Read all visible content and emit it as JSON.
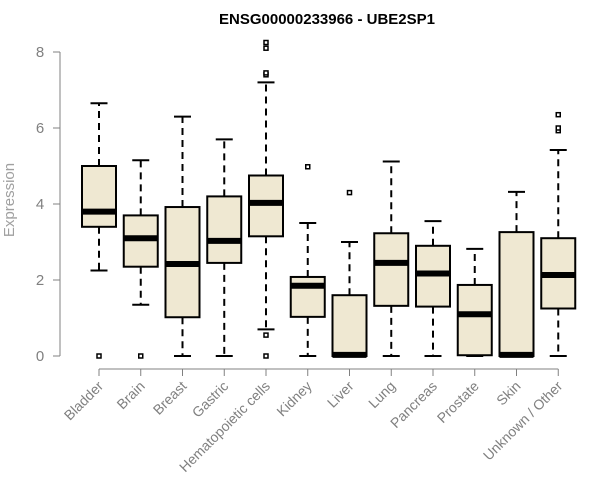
{
  "chart_data": {
    "type": "box",
    "title": "ENSG00000233966 - UBE2SP1",
    "xlabel": "",
    "ylabel": "Expression",
    "ylim": [
      0,
      8
    ],
    "yticks": [
      0,
      2,
      4,
      6,
      8
    ],
    "categories": [
      "Bladder",
      "Brain",
      "Breast",
      "Gastric",
      "Hematopoietic cells",
      "Kidney",
      "Liver",
      "Lung",
      "Pancreas",
      "Prostate",
      "Skin",
      "Unknown / Other"
    ],
    "series": [
      {
        "name": "Bladder",
        "whisker_low": 2.25,
        "q1": 3.4,
        "median": 3.8,
        "q3": 5.0,
        "whisker_high": 6.65,
        "outliers": [
          0.0
        ]
      },
      {
        "name": "Brain",
        "whisker_low": 1.35,
        "q1": 2.35,
        "median": 3.1,
        "q3": 3.7,
        "whisker_high": 5.15,
        "outliers": [
          0.0
        ]
      },
      {
        "name": "Breast",
        "whisker_low": 0.0,
        "q1": 1.02,
        "median": 2.42,
        "q3": 3.92,
        "whisker_high": 6.3,
        "outliers": []
      },
      {
        "name": "Gastric",
        "whisker_low": 0.0,
        "q1": 2.45,
        "median": 3.03,
        "q3": 4.2,
        "whisker_high": 5.7,
        "outliers": []
      },
      {
        "name": "Hematopoietic cells",
        "whisker_low": 0.7,
        "q1": 3.15,
        "median": 4.03,
        "q3": 4.75,
        "whisker_high": 7.2,
        "outliers": [
          0.0,
          0.55,
          7.4,
          7.45,
          8.1,
          8.25
        ]
      },
      {
        "name": "Kidney",
        "whisker_low": 0.0,
        "q1": 1.03,
        "median": 1.85,
        "q3": 2.08,
        "whisker_high": 3.5,
        "outliers": [
          4.98
        ]
      },
      {
        "name": "Liver",
        "whisker_low": 0.0,
        "q1": 0.0,
        "median": 0.03,
        "q3": 1.6,
        "whisker_high": 3.0,
        "outliers": [
          4.3
        ]
      },
      {
        "name": "Lung",
        "whisker_low": 0.0,
        "q1": 1.32,
        "median": 2.45,
        "q3": 3.23,
        "whisker_high": 5.12,
        "outliers": []
      },
      {
        "name": "Pancreas",
        "whisker_low": 0.0,
        "q1": 1.3,
        "median": 2.17,
        "q3": 2.9,
        "whisker_high": 3.55,
        "outliers": []
      },
      {
        "name": "Prostate",
        "whisker_low": 0.0,
        "q1": 0.02,
        "median": 1.1,
        "q3": 1.87,
        "whisker_high": 2.82,
        "outliers": []
      },
      {
        "name": "Skin",
        "whisker_low": 0.0,
        "q1": 0.0,
        "median": 0.03,
        "q3": 3.26,
        "whisker_high": 4.32,
        "outliers": []
      },
      {
        "name": "Unknown / Other",
        "whisker_low": 0.0,
        "q1": 1.25,
        "median": 2.13,
        "q3": 3.1,
        "whisker_high": 5.42,
        "outliers": [
          5.93,
          6.0,
          6.35
        ]
      }
    ],
    "colors": {
      "box_fill": "#efe8d2",
      "box_stroke": "#000000",
      "axis": "#808080",
      "tick_text": "#808080"
    },
    "grid": false,
    "legend": "none"
  }
}
